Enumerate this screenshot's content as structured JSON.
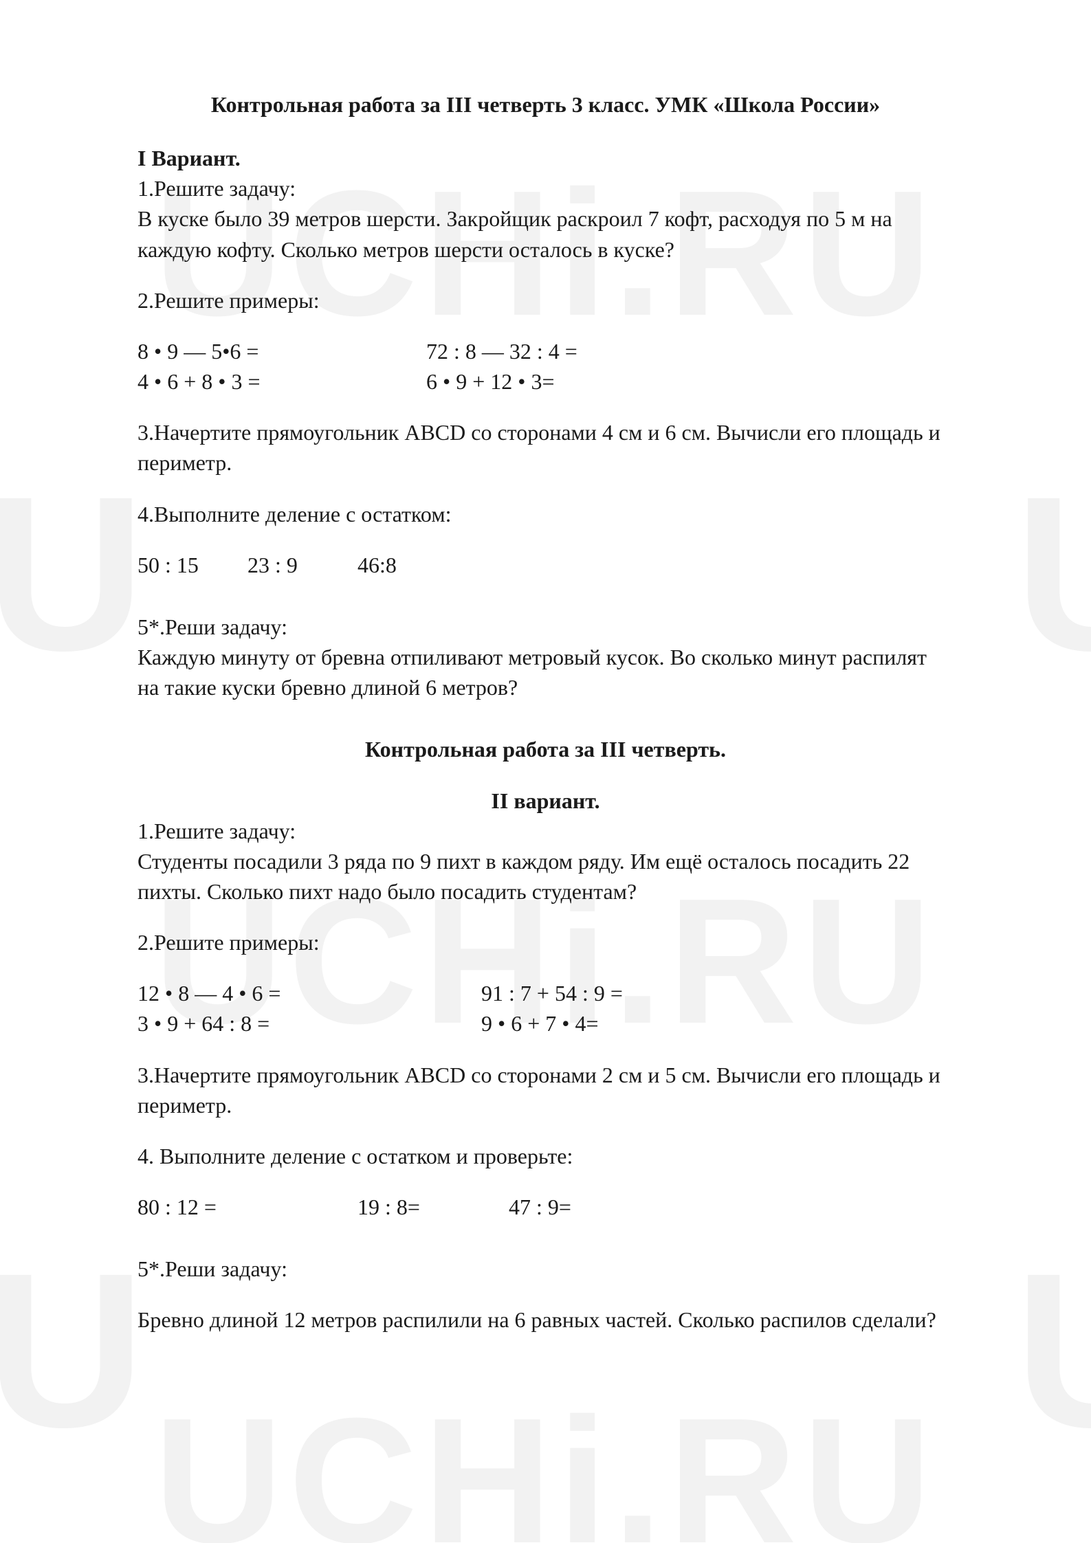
{
  "watermark": {
    "full": "UCHi.RU",
    "partial_left": "U",
    "partial_right": "U",
    "color": "rgba(0,0,0,0.05)"
  },
  "colors": {
    "background": "#ffffff",
    "text": "#1a1a1a"
  },
  "typography": {
    "body_font": "Times New Roman",
    "body_size_pt": 24,
    "title_weight": "bold"
  },
  "doc": {
    "title": "Контрольная работа за III четверть 3 класс. УМК «Школа России»",
    "variant1": {
      "heading": "I Вариант.",
      "t1_label": "1.Решите задачу:",
      "t1_text": "В куске было 39 метров шерсти. Закройщик раскроил 7 кофт, расходуя по 5 м на каждую кофту. Сколько метров шерсти осталось в куске?",
      "t2_label": "2.Решите примеры:",
      "t2_rows": [
        {
          "l": "8 • 9 — 5•6 =",
          "r": "72 : 8 — 32 : 4 ="
        },
        {
          "l": "4 • 6 + 8 • 3 =",
          "r": "  6 • 9 + 12 • 3="
        }
      ],
      "t3": "3.Начертите прямоугольник ABCD со сторонами 4 см и 6 см. Вычисли  его площадь и периметр.",
      "t4_label": "4.Выполните деление с остатком:",
      "t4_items": [
        "50 : 15",
        "23 : 9",
        "46:8"
      ],
      "t5_label": "5*.Реши задачу:",
      "t5_text": " Каждую минуту от бревна отпиливают метровый кусок. Во сколько минут распилят на такие куски бревно длиной 6 метров?"
    },
    "mid_title": "Контрольная работа за III четверть.",
    "variant2": {
      "heading": "II вариант.",
      "t1_label": "1.Решите задачу:",
      "t1_text": "Студенты  посадили 3 ряда по 9 пихт в каждом ряду. Им ещё осталось посадить 22 пихты. Сколько пихт надо было посадить студентам?",
      "t2_label": "2.Решите примеры:",
      "t2_rows": [
        {
          "l": "12 • 8 — 4 • 6 =",
          "r": "91 : 7 + 54 : 9 ="
        },
        {
          "l": "3 • 9 + 64 : 8 =",
          "r": "9 • 6 + 7 • 4="
        }
      ],
      "t3": "3.Начертите прямоугольник ABCD со сторонами 2 см и 5 см. Вычисли его площадь и периметр.",
      "t4_label": "4. Выполните деление с остатком и проверьте:",
      "t4_items": [
        "80 : 12 =",
        "19 : 8=",
        "47 : 9="
      ],
      "t5_label": "5*.Реши задачу:",
      "t5_text": "Бревно длиной 12 метров распилили на 6 равных частей. Сколько распилов сделали?"
    }
  }
}
